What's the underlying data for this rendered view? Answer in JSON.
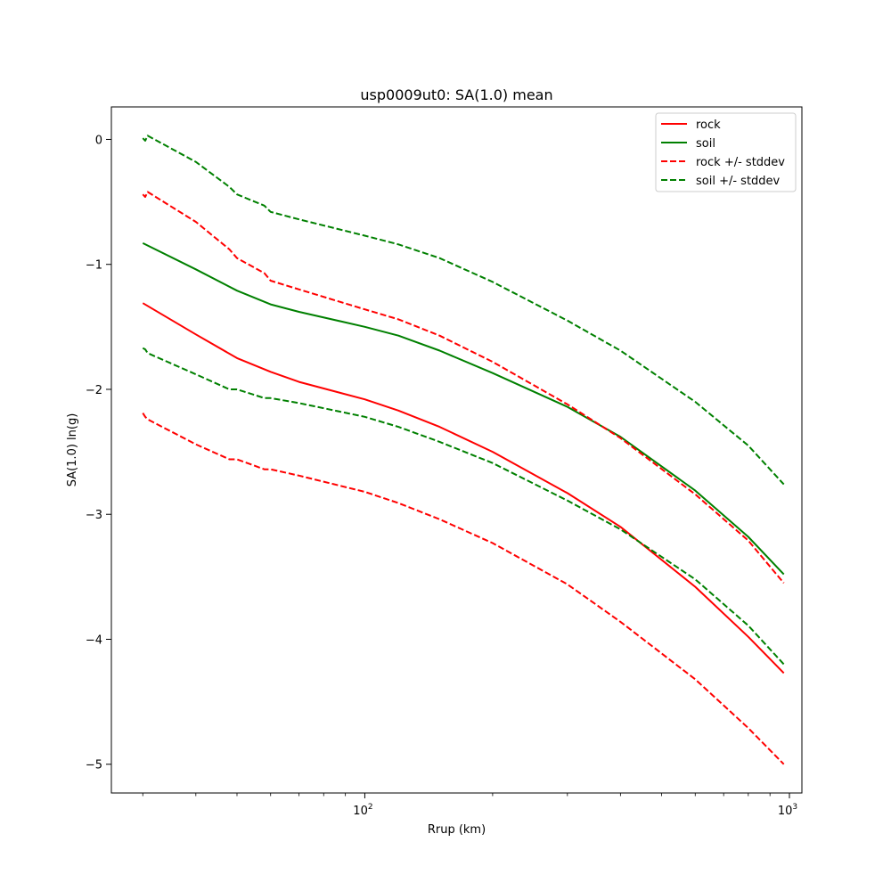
{
  "chart_data": {
    "type": "line",
    "title": "usp0009ut0: SA(1.0) mean",
    "xlabel": "Rrup (km)",
    "ylabel": "SA(1.0) ln(g)",
    "xscale": "log",
    "xlim": [
      25.3,
      1070
    ],
    "ylim": [
      -5.23,
      0.26
    ],
    "x_ticks": [
      {
        "value": 100,
        "base": "10",
        "exp": "2"
      },
      {
        "value": 1000,
        "base": "10",
        "exp": "3"
      }
    ],
    "y_ticks": [
      {
        "value": 0,
        "label": "0"
      },
      {
        "value": -1,
        "label": "−1"
      },
      {
        "value": -2,
        "label": "−2"
      },
      {
        "value": -3,
        "label": "−3"
      },
      {
        "value": -4,
        "label": "−4"
      },
      {
        "value": -5,
        "label": "−5"
      }
    ],
    "legend_position": "top-right",
    "legend": [
      {
        "label": "rock",
        "color": "#ff0000",
        "style": "solid"
      },
      {
        "label": "soil",
        "color": "#008000",
        "style": "solid"
      },
      {
        "label": "rock +/- stddev",
        "color": "#ff0000",
        "style": "dashed"
      },
      {
        "label": "soil +/- stddev",
        "color": "#008000",
        "style": "dashed"
      }
    ],
    "series": [
      {
        "name": "rock",
        "color": "#ff0000",
        "style": "solid",
        "x": [
          30,
          40,
          50,
          60,
          70,
          100,
          120,
          150,
          200,
          300,
          400,
          600,
          800,
          970
        ],
        "y": [
          -1.31,
          -1.56,
          -1.75,
          -1.86,
          -1.94,
          -2.08,
          -2.17,
          -2.3,
          -2.5,
          -2.83,
          -3.1,
          -3.58,
          -3.98,
          -4.27
        ]
      },
      {
        "name": "soil",
        "color": "#008000",
        "style": "solid",
        "x": [
          30,
          40,
          50,
          60,
          70,
          100,
          120,
          150,
          200,
          300,
          400,
          600,
          800,
          970
        ],
        "y": [
          -0.83,
          -1.04,
          -1.21,
          -1.32,
          -1.38,
          -1.5,
          -1.57,
          -1.69,
          -1.87,
          -2.14,
          -2.38,
          -2.81,
          -3.18,
          -3.48
        ]
      },
      {
        "name": "rock +/- stddev",
        "color": "#ff0000",
        "style": "dashed",
        "x": [
          30,
          30.4,
          30.8,
          40,
          48,
          50,
          58,
          60,
          70,
          100,
          120,
          150,
          200,
          300,
          400,
          600,
          800,
          970
        ],
        "y": [
          -0.44,
          -0.46,
          -0.42,
          -0.66,
          -0.88,
          -0.95,
          -1.07,
          -1.13,
          -1.2,
          -1.36,
          -1.44,
          -1.57,
          -1.78,
          -2.12,
          -2.39,
          -2.84,
          -3.21,
          -3.55
        ]
      },
      {
        "name": "",
        "color": "#ff0000",
        "style": "dashed",
        "x": [
          30,
          30.4,
          30.8,
          40,
          48,
          50,
          58,
          60,
          70,
          100,
          120,
          150,
          200,
          300,
          400,
          600,
          800,
          970
        ],
        "y": [
          -2.19,
          -2.22,
          -2.24,
          -2.44,
          -2.56,
          -2.56,
          -2.64,
          -2.64,
          -2.69,
          -2.82,
          -2.91,
          -3.04,
          -3.23,
          -3.56,
          -3.86,
          -4.32,
          -4.71,
          -5.0
        ]
      },
      {
        "name": "soil +/- stddev",
        "color": "#008000",
        "style": "dashed",
        "x": [
          30,
          30.4,
          30.8,
          40,
          48,
          50,
          58,
          60,
          70,
          100,
          120,
          150,
          200,
          300,
          400,
          600,
          800,
          970
        ],
        "y": [
          0.01,
          -0.01,
          0.03,
          -0.18,
          -0.38,
          -0.44,
          -0.53,
          -0.58,
          -0.64,
          -0.77,
          -0.84,
          -0.95,
          -1.14,
          -1.45,
          -1.69,
          -2.1,
          -2.45,
          -2.76
        ]
      },
      {
        "name": "",
        "color": "#008000",
        "style": "dashed",
        "x": [
          30,
          30.4,
          30.8,
          40,
          48,
          50,
          58,
          60,
          70,
          100,
          120,
          150,
          200,
          300,
          400,
          600,
          800,
          970
        ],
        "y": [
          -1.67,
          -1.68,
          -1.71,
          -1.88,
          -2.0,
          -2.0,
          -2.07,
          -2.07,
          -2.11,
          -2.22,
          -2.3,
          -2.42,
          -2.59,
          -2.89,
          -3.12,
          -3.52,
          -3.89,
          -4.2
        ]
      }
    ]
  }
}
